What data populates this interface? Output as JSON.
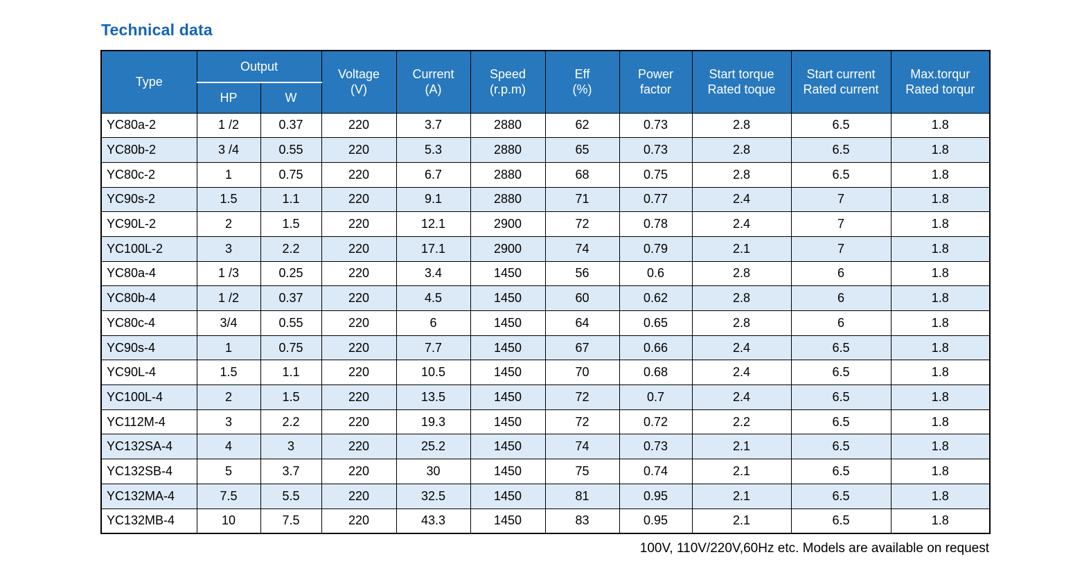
{
  "page": {
    "title": "Technical data",
    "footnote": "100V, 110V/220V,60Hz etc. Models are available on request"
  },
  "colors": {
    "header_bg": "#2878bd",
    "stripe_bg": "#dce9f6",
    "title_color": "#1464b8",
    "border": "#000000"
  },
  "table": {
    "headers": {
      "type": "Type",
      "output": "Output",
      "hp": "HP",
      "w": "W",
      "voltage": "Voltage\n(V)",
      "current": "Current\n(A)",
      "speed": "Speed\n(r.p.m)",
      "eff": "Eff\n(%)",
      "power_factor": "Power\nfactor",
      "start_torque": "Start torque\nRated toque",
      "start_current": "Start current\nRated current",
      "max_torque": "Max.torqur\nRated torqur"
    },
    "rows": [
      [
        "YC80a-2",
        "1 /2",
        "0.37",
        "220",
        "3.7",
        "2880",
        "62",
        "0.73",
        "2.8",
        "6.5",
        "1.8"
      ],
      [
        "YC80b-2",
        "3 /4",
        "0.55",
        "220",
        "5.3",
        "2880",
        "65",
        "0.73",
        "2.8",
        "6.5",
        "1.8"
      ],
      [
        "YC80c-2",
        "1",
        "0.75",
        "220",
        "6.7",
        "2880",
        "68",
        "0.75",
        "2.8",
        "6.5",
        "1.8"
      ],
      [
        "YC90s-2",
        "1.5",
        "1.1",
        "220",
        "9.1",
        "2880",
        "71",
        "0.77",
        "2.4",
        "7",
        "1.8"
      ],
      [
        "YC90L-2",
        "2",
        "1.5",
        "220",
        "12.1",
        "2900",
        "72",
        "0.78",
        "2.4",
        "7",
        "1.8"
      ],
      [
        "YC100L-2",
        "3",
        "2.2",
        "220",
        "17.1",
        "2900",
        "74",
        "0.79",
        "2.1",
        "7",
        "1.8"
      ],
      [
        "YC80a-4",
        "1 /3",
        "0.25",
        "220",
        "3.4",
        "1450",
        "56",
        "0.6",
        "2.8",
        "6",
        "1.8"
      ],
      [
        "YC80b-4",
        "1 /2",
        "0.37",
        "220",
        "4.5",
        "1450",
        "60",
        "0.62",
        "2.8",
        "6",
        "1.8"
      ],
      [
        "YC80c-4",
        "3/4",
        "0.55",
        "220",
        "6",
        "1450",
        "64",
        "0.65",
        "2.8",
        "6",
        "1.8"
      ],
      [
        "YC90s-4",
        "1",
        "0.75",
        "220",
        "7.7",
        "1450",
        "67",
        "0.66",
        "2.4",
        "6.5",
        "1.8"
      ],
      [
        "YC90L-4",
        "1.5",
        "1.1",
        "220",
        "10.5",
        "1450",
        "70",
        "0.68",
        "2.4",
        "6.5",
        "1.8"
      ],
      [
        "YC100L-4",
        "2",
        "1.5",
        "220",
        "13.5",
        "1450",
        "72",
        "0.7",
        "2.4",
        "6.5",
        "1.8"
      ],
      [
        "YC112M-4",
        "3",
        "2.2",
        "220",
        "19.3",
        "1450",
        "72",
        "0.72",
        "2.2",
        "6.5",
        "1.8"
      ],
      [
        "YC132SA-4",
        "4",
        "3",
        "220",
        "25.2",
        "1450",
        "74",
        "0.73",
        "2.1",
        "6.5",
        "1.8"
      ],
      [
        "YC132SB-4",
        "5",
        "3.7",
        "220",
        "30",
        "1450",
        "75",
        "0.74",
        "2.1",
        "6.5",
        "1.8"
      ],
      [
        "YC132MA-4",
        "7.5",
        "5.5",
        "220",
        "32.5",
        "1450",
        "81",
        "0.95",
        "2.1",
        "6.5",
        "1.8"
      ],
      [
        "YC132MB-4",
        "10",
        "7.5",
        "220",
        "43.3",
        "1450",
        "83",
        "0.95",
        "2.1",
        "6.5",
        "1.8"
      ]
    ]
  }
}
